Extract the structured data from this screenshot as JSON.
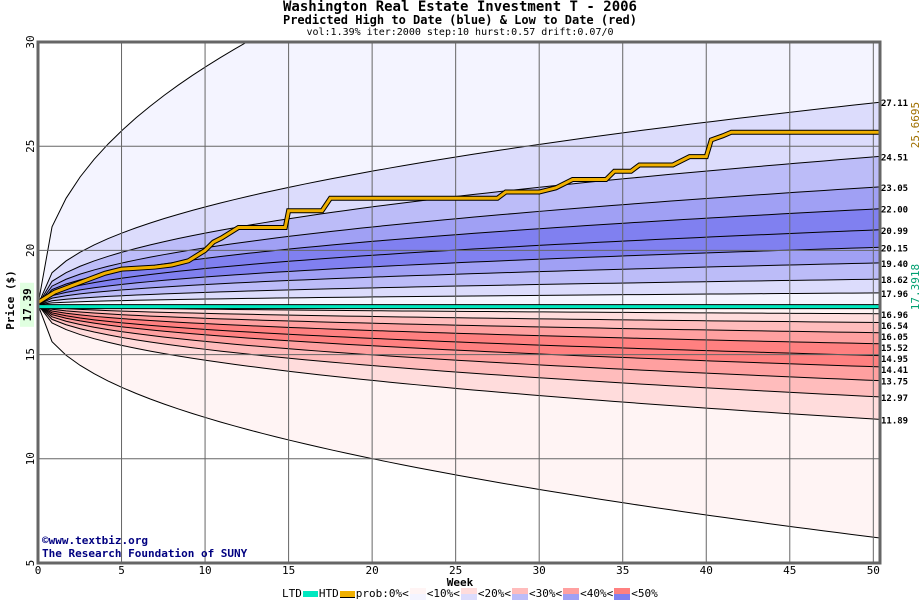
{
  "chart_data": {
    "type": "area",
    "title": "Washington Real Estate Investment T - 2006",
    "subtitle": "Predicted High to Date (blue) &  Low to Date (red)",
    "params": "vol:1.39% iter:2000 step:10 hurst:0.57 drift:0.07/0",
    "xlabel": "Week",
    "ylabel": "Price ($)",
    "xlim": [
      0,
      50.4
    ],
    "ylim": [
      5,
      30
    ],
    "xticks": [
      "0",
      "5",
      "10",
      "15",
      "20",
      "25",
      "30",
      "35",
      "40",
      "45",
      "50"
    ],
    "yticks": [
      "5",
      "10",
      "15",
      "20",
      "25",
      "30"
    ],
    "start_price": 17.39,
    "start_label": "17.39",
    "upper_quantiles": [
      17.96,
      18.62,
      19.4,
      20.15,
      20.99,
      22.0,
      23.05,
      24.51,
      27.11
    ],
    "upper_labels": [
      "17.96",
      "18.62",
      "19.40",
      "20.15",
      "20.99",
      "22.00",
      "23.05",
      "24.51",
      "27.11"
    ],
    "upper_outer_end": 41.0,
    "lower_quantiles": [
      16.96,
      16.54,
      16.05,
      15.52,
      14.95,
      14.41,
      13.75,
      12.97,
      11.89
    ],
    "lower_labels": [
      "16.96",
      "16.54",
      "16.05",
      "15.52",
      "14.95",
      "14.41",
      "13.75",
      "12.97",
      "11.89"
    ],
    "lower_outer_end": 6.2,
    "htd": {
      "label": "25.6695",
      "steps": [
        [
          0,
          17.5
        ],
        [
          1,
          18.0
        ],
        [
          2,
          18.3
        ],
        [
          3,
          18.6
        ],
        [
          4,
          18.9
        ],
        [
          5,
          19.1
        ],
        [
          7,
          19.2
        ],
        [
          8,
          19.3
        ],
        [
          9,
          19.5
        ],
        [
          10,
          20.0
        ],
        [
          10.5,
          20.4
        ],
        [
          11,
          20.6
        ],
        [
          12,
          21.1
        ],
        [
          14.8,
          21.1
        ],
        [
          15,
          21.9
        ],
        [
          17,
          21.9
        ],
        [
          17.5,
          22.5
        ],
        [
          27.5,
          22.5
        ],
        [
          28,
          22.8
        ],
        [
          30,
          22.8
        ],
        [
          31,
          23.0
        ],
        [
          32,
          23.4
        ],
        [
          34,
          23.4
        ],
        [
          34.5,
          23.8
        ],
        [
          35.5,
          23.8
        ],
        [
          36,
          24.1
        ],
        [
          38,
          24.1
        ],
        [
          39,
          24.5
        ],
        [
          40,
          24.5
        ],
        [
          40.3,
          25.3
        ],
        [
          41,
          25.5
        ],
        [
          41.5,
          25.67
        ],
        [
          50.4,
          25.67
        ]
      ]
    },
    "ltd": {
      "label": "17.3918",
      "value": 17.3
    },
    "band_colors_blue": [
      "#f4f4ff",
      "#dcdcfc",
      "#bcbcf8",
      "#a0a0f4",
      "#8080f0"
    ],
    "band_colors_red": [
      "#fff4f4",
      "#ffdcdc",
      "#ffbcbc",
      "#ffa0a0",
      "#ff8080"
    ],
    "htd_color": "#f0b000",
    "ltd_color": "#00e8c0"
  },
  "legend": {
    "ltd": "LTD",
    "htd": "HTD",
    "prob": "prob:0%<",
    "p10": "<10%<",
    "p20": "<20%<",
    "p30": "<30%<",
    "p40": "<40%<",
    "p50": "<50%"
  },
  "credit": {
    "line1": "©www.textbiz.org",
    "line2": "The Research Foundation of SUNY"
  }
}
